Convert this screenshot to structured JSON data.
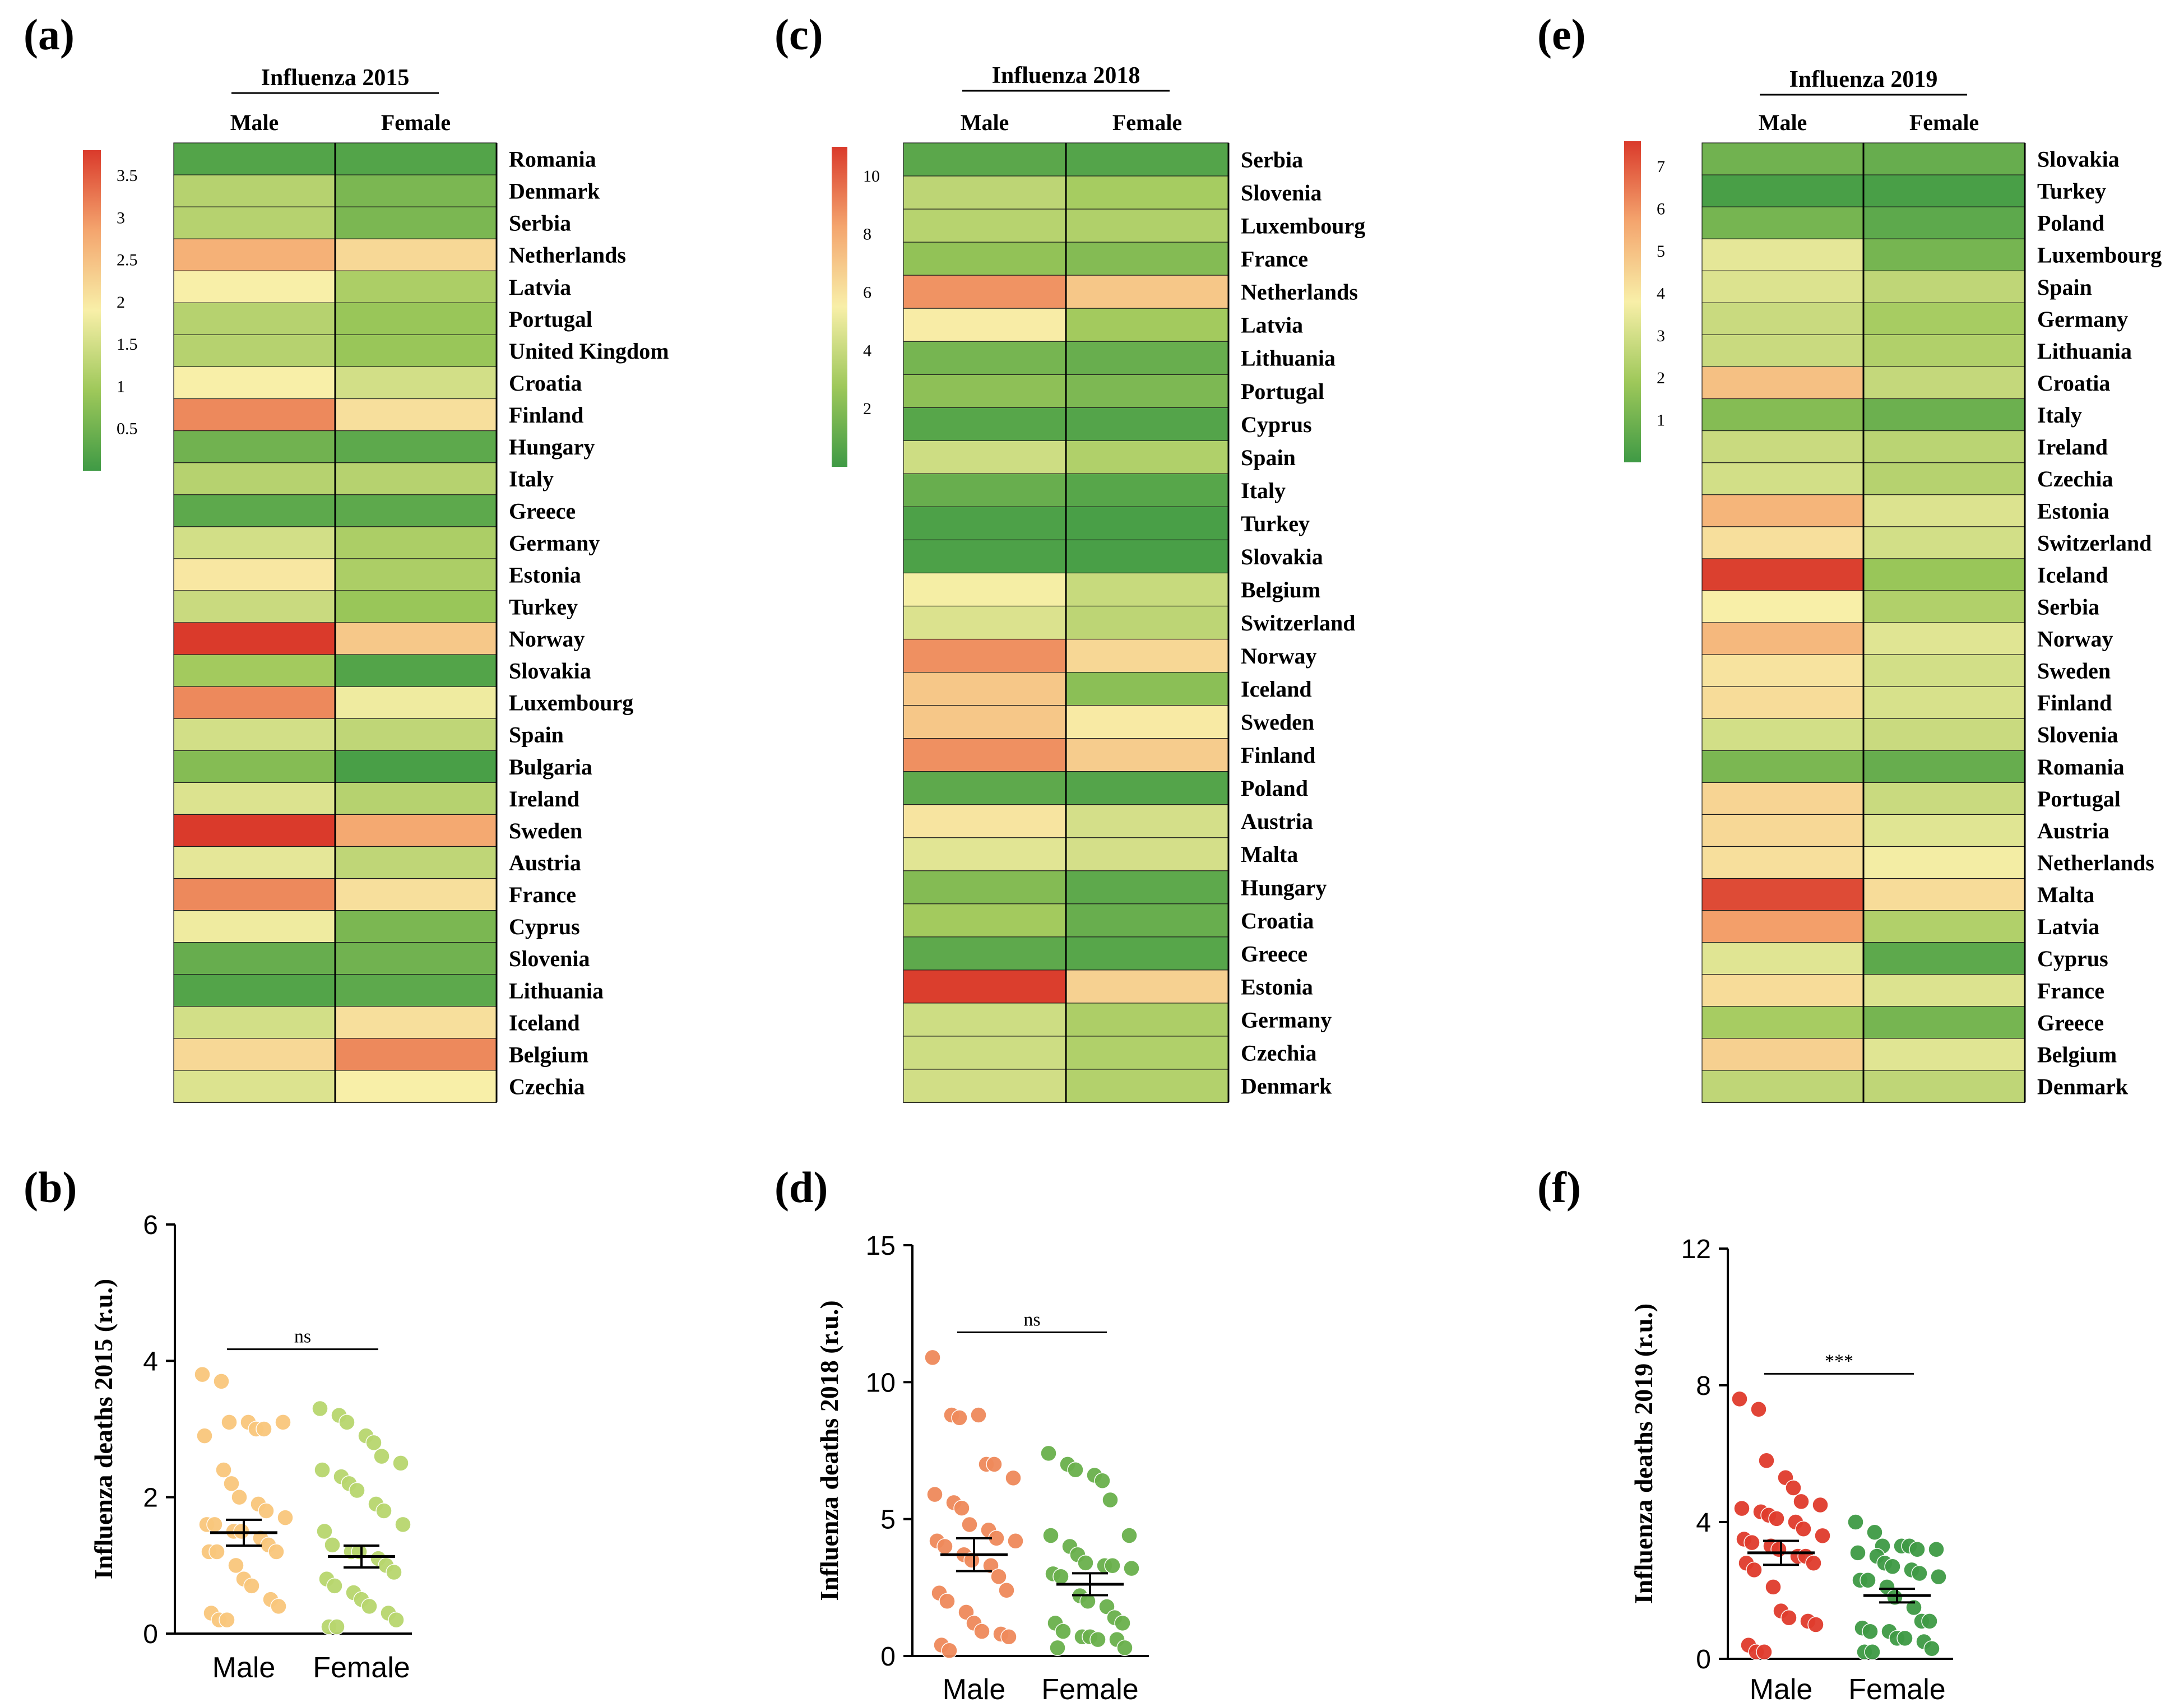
{
  "chart_data": [
    {
      "panel": "(a)",
      "type": "heatmap",
      "title": "Influenza 2015",
      "columns": [
        "Male",
        "Female"
      ],
      "rows": [
        "Romania",
        "Denmark",
        "Serbia",
        "Netherlands",
        "Latvia",
        "Portugal",
        "United Kingdom",
        "Croatia",
        "Finland",
        "Hungary",
        "Italy",
        "Greece",
        "Germany",
        "Estonia",
        "Turkey",
        "Norway",
        "Slovakia",
        "Luxembourg",
        "Spain",
        "Bulgaria",
        "Ireland",
        "Sweden",
        "Austria",
        "France",
        "Cyprus",
        "Slovenia",
        "Lithuania",
        "Iceland",
        "Belgium",
        "Czechia"
      ],
      "values": [
        [
          0.2,
          0.2
        ],
        [
          1.2,
          0.6
        ],
        [
          1.2,
          0.6
        ],
        [
          2.7,
          2.2
        ],
        [
          1.9,
          1.1
        ],
        [
          1.2,
          0.9
        ],
        [
          1.2,
          0.9
        ],
        [
          1.9,
          1.5
        ],
        [
          3.1,
          2.1
        ],
        [
          0.5,
          0.3
        ],
        [
          1.2,
          1.2
        ],
        [
          0.3,
          0.3
        ],
        [
          1.5,
          1.1
        ],
        [
          2.0,
          1.1
        ],
        [
          1.4,
          0.9
        ],
        [
          3.8,
          2.4
        ],
        [
          1.0,
          0.2
        ],
        [
          3.1,
          1.8
        ],
        [
          1.5,
          1.3
        ],
        [
          0.7,
          0.1
        ],
        [
          1.6,
          1.2
        ],
        [
          3.8,
          2.8
        ],
        [
          1.7,
          1.3
        ],
        [
          3.1,
          2.1
        ],
        [
          1.8,
          0.6
        ],
        [
          0.4,
          0.5
        ],
        [
          0.2,
          0.3
        ],
        [
          1.5,
          2.1
        ],
        [
          2.2,
          3.1
        ],
        [
          1.6,
          1.9
        ]
      ],
      "colorbar": {
        "min": 0,
        "max": 3.8,
        "ticks": [
          "3.5",
          "3",
          "2.5",
          "2",
          "1.5",
          "1",
          "0.5"
        ],
        "tick_values": [
          3.5,
          3,
          2.5,
          2,
          1.5,
          1,
          0.5
        ]
      }
    },
    {
      "panel": "(c)",
      "type": "heatmap",
      "title": "Influenza 2018",
      "columns": [
        "Male",
        "Female"
      ],
      "rows": [
        "Serbia",
        "Slovenia",
        "Luxembourg",
        "France",
        "Netherlands",
        "Latvia",
        "Lithuania",
        "Portugal",
        "Cyprus",
        "Spain",
        "Italy",
        "Turkey",
        "Slovakia",
        "Belgium",
        "Switzerland",
        "Norway",
        "Iceland",
        "Sweden",
        "Finland",
        "Poland",
        "Austria",
        "Malta",
        "Hungary",
        "Croatia",
        "Greece",
        "Estonia",
        "Germany",
        "Czechia",
        "Denmark"
      ],
      "values": [
        [
          0.8,
          0.6
        ],
        [
          3.7,
          3.0
        ],
        [
          3.5,
          3.3
        ],
        [
          2.4,
          2.0
        ],
        [
          8.7,
          7.0
        ],
        [
          5.6,
          2.9
        ],
        [
          1.6,
          1.2
        ],
        [
          2.3,
          1.8
        ],
        [
          0.7,
          0.6
        ],
        [
          4.2,
          3.3
        ],
        [
          1.2,
          0.7
        ],
        [
          0.4,
          0.3
        ],
        [
          0.4,
          0.3
        ],
        [
          5.4,
          4.0
        ],
        [
          4.6,
          3.7
        ],
        [
          8.8,
          6.4
        ],
        [
          7.0,
          2.2
        ],
        [
          7.0,
          5.7
        ],
        [
          8.8,
          6.8
        ],
        [
          0.9,
          0.6
        ],
        [
          5.9,
          4.4
        ],
        [
          4.8,
          4.4
        ],
        [
          2.0,
          0.9
        ],
        [
          2.9,
          1.2
        ],
        [
          0.9,
          0.7
        ],
        [
          10.9,
          6.6
        ],
        [
          4.2,
          3.2
        ],
        [
          4.2,
          3.3
        ],
        [
          4.3,
          3.4
        ]
      ],
      "colorbar": {
        "min": 0,
        "max": 11,
        "ticks": [
          "10",
          "8",
          "6",
          "4",
          "2"
        ],
        "tick_values": [
          10,
          8,
          6,
          4,
          2
        ]
      }
    },
    {
      "panel": "(e)",
      "type": "heatmap",
      "title": "Influenza 2019",
      "columns": [
        "Male",
        "Female"
      ],
      "rows": [
        "Slovakia",
        "Turkey",
        "Poland",
        "Luxembourg",
        "Spain",
        "Germany",
        "Lithuania",
        "Croatia",
        "Italy",
        "Ireland",
        "Czechia",
        "Estonia",
        "Switzerland",
        "Iceland",
        "Serbia",
        "Norway",
        "Sweden",
        "Finland",
        "Slovenia",
        "Romania",
        "Portugal",
        "Austria",
        "Netherlands",
        "Malta",
        "Latvia",
        "Cyprus",
        "France",
        "Greece",
        "Belgium",
        "Denmark"
      ],
      "values": [
        [
          1.0,
          0.8
        ],
        [
          0.2,
          0.2
        ],
        [
          1.1,
          0.6
        ],
        [
          3.4,
          1.1
        ],
        [
          3.2,
          2.6
        ],
        [
          2.8,
          2.1
        ],
        [
          2.8,
          2.3
        ],
        [
          5.0,
          2.7
        ],
        [
          1.4,
          0.9
        ],
        [
          2.8,
          2.5
        ],
        [
          3.0,
          2.4
        ],
        [
          5.3,
          3.2
        ],
        [
          4.2,
          3.0
        ],
        [
          7.5,
          1.8
        ],
        [
          3.8,
          2.3
        ],
        [
          5.2,
          3.3
        ],
        [
          4.1,
          3.0
        ],
        [
          4.3,
          3.1
        ],
        [
          3.0,
          2.8
        ],
        [
          1.2,
          0.8
        ],
        [
          4.5,
          2.8
        ],
        [
          4.4,
          3.3
        ],
        [
          4.2,
          3.7
        ],
        [
          7.3,
          4.3
        ],
        [
          5.8,
          2.3
        ],
        [
          3.3,
          0.6
        ],
        [
          4.3,
          3.2
        ],
        [
          2.1,
          1.1
        ],
        [
          4.6,
          3.3
        ],
        [
          2.6,
          2.6
        ]
      ],
      "colorbar": {
        "min": 0,
        "max": 7.6,
        "ticks": [
          "7",
          "6",
          "5",
          "4",
          "3",
          "2",
          "1"
        ],
        "tick_values": [
          7,
          6,
          5,
          4,
          3,
          2,
          1
        ]
      }
    },
    {
      "panel": "(b)",
      "type": "scatter",
      "ylabel": "Influenza deaths 2015 (r.u.)",
      "categories": [
        "Male",
        "Female"
      ],
      "ylim": [
        0,
        6
      ],
      "yticks": [
        0,
        2,
        4,
        6
      ],
      "ytick_labels": [
        "0",
        "2",
        "4",
        "6"
      ],
      "means": [
        1.48,
        1.13
      ],
      "sems": [
        0.19,
        0.16
      ],
      "significance": "ns",
      "marker_colors": [
        "#f9c77c",
        "#b8d66e"
      ],
      "series": [
        {
          "name": "Male",
          "values": [
            3.8,
            3.7,
            3.1,
            3.1,
            3.0,
            3.0,
            3.1,
            2.9,
            2.4,
            2.2,
            2.0,
            1.9,
            1.8,
            1.7,
            1.6,
            1.6,
            1.5,
            1.5,
            1.4,
            1.3,
            1.2,
            1.2,
            1.2,
            1.0,
            0.8,
            0.7,
            0.5,
            0.4,
            0.3,
            0.2,
            0.2
          ]
        },
        {
          "name": "Female",
          "values": [
            3.3,
            3.2,
            3.1,
            2.9,
            2.8,
            2.6,
            2.5,
            2.4,
            2.3,
            2.2,
            2.1,
            1.9,
            1.8,
            1.6,
            1.5,
            1.3,
            1.2,
            1.2,
            1.1,
            1.0,
            0.9,
            0.8,
            0.7,
            0.6,
            0.5,
            0.4,
            0.3,
            0.2,
            0.1,
            0.1
          ]
        }
      ]
    },
    {
      "panel": "(d)",
      "type": "scatter",
      "ylabel": "Influenza deaths 2018 (r.u.)",
      "categories": [
        "Male",
        "Female"
      ],
      "ylim": [
        0,
        15
      ],
      "yticks": [
        0,
        5,
        10,
        15
      ],
      "ytick_labels": [
        "0",
        "5",
        "10",
        "15"
      ],
      "means": [
        3.7,
        2.62
      ],
      "sems": [
        0.6,
        0.4
      ],
      "significance": "ns",
      "marker_colors": [
        "#ef8a5b",
        "#6ab04c"
      ],
      "series": [
        {
          "name": "Male",
          "values": [
            10.9,
            8.8,
            8.7,
            8.8,
            7.0,
            7.0,
            6.5,
            5.9,
            5.6,
            5.4,
            4.8,
            4.6,
            4.3,
            4.2,
            4.2,
            4.0,
            3.7,
            3.5,
            3.3,
            2.9,
            2.4,
            2.3,
            2.0,
            1.6,
            1.2,
            0.9,
            0.8,
            0.7,
            0.4,
            0.2
          ]
        },
        {
          "name": "Female",
          "values": [
            7.4,
            7.0,
            6.8,
            6.6,
            6.4,
            5.7,
            4.4,
            4.4,
            4.0,
            3.7,
            3.4,
            3.3,
            3.3,
            3.2,
            3.0,
            2.9,
            2.2,
            2.0,
            1.8,
            1.4,
            1.2,
            1.2,
            0.9,
            0.7,
            0.7,
            0.6,
            0.6,
            0.3,
            0.3
          ]
        }
      ]
    },
    {
      "panel": "(f)",
      "type": "scatter",
      "ylabel": "Influenza deaths 2019 (r.u.)",
      "categories": [
        "Male",
        "Female"
      ],
      "ylim": [
        0,
        12
      ],
      "yticks": [
        0,
        4,
        8,
        12
      ],
      "ytick_labels": [
        "0",
        "4",
        "8",
        "12"
      ],
      "means": [
        3.1,
        1.85
      ],
      "sems": [
        0.35,
        0.2
      ],
      "significance": "***",
      "marker_colors": [
        "#e03c2d",
        "#3f9a45"
      ],
      "series": [
        {
          "name": "Male",
          "values": [
            7.6,
            7.3,
            5.8,
            5.3,
            5.0,
            4.6,
            4.5,
            4.4,
            4.3,
            4.2,
            4.1,
            4.0,
            3.8,
            3.6,
            3.5,
            3.4,
            3.3,
            3.2,
            3.0,
            3.0,
            2.8,
            2.8,
            2.6,
            2.1,
            1.4,
            1.2,
            1.1,
            1.0,
            0.4,
            0.2,
            0.2
          ]
        },
        {
          "name": "Female",
          "values": [
            4.0,
            3.7,
            3.3,
            3.3,
            3.3,
            3.2,
            3.2,
            3.1,
            3.0,
            2.8,
            2.7,
            2.6,
            2.5,
            2.4,
            2.3,
            2.3,
            2.1,
            1.8,
            1.5,
            1.1,
            1.1,
            0.9,
            0.8,
            0.8,
            0.6,
            0.6,
            0.5,
            0.3,
            0.2,
            0.2
          ]
        }
      ]
    }
  ]
}
